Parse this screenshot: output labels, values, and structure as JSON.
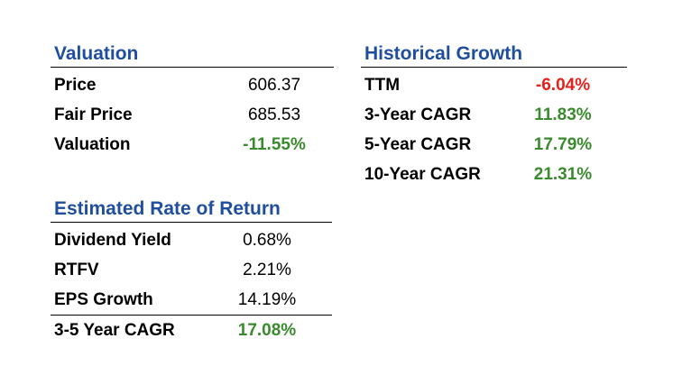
{
  "colors": {
    "title_blue": "#1f4e9e",
    "positive_green": "#3a8a2e",
    "negative_red": "#e8201a",
    "text_black": "#000000"
  },
  "valuation": {
    "title": "Valuation",
    "rows": [
      {
        "label": "Price",
        "value": "606.37"
      },
      {
        "label": "Fair Price",
        "value": "685.53"
      },
      {
        "label": "Valuation",
        "value": "-11.55%"
      }
    ]
  },
  "historical_growth": {
    "title": "Historical Growth",
    "rows": [
      {
        "label": "TTM",
        "value": "-6.04%"
      },
      {
        "label": "3-Year CAGR",
        "value": "11.83%"
      },
      {
        "label": "5-Year CAGR",
        "value": "17.79%"
      },
      {
        "label": "10-Year CAGR",
        "value": "21.31%"
      }
    ]
  },
  "estimated_return": {
    "title": "Estimated Rate of Return",
    "rows": [
      {
        "label": "Dividend Yield",
        "value": "0.68%"
      },
      {
        "label": "RTFV",
        "value": "2.21%"
      },
      {
        "label": "EPS Growth",
        "value": "14.19%"
      },
      {
        "label": "3-5 Year CAGR",
        "value": "17.08%"
      }
    ]
  }
}
